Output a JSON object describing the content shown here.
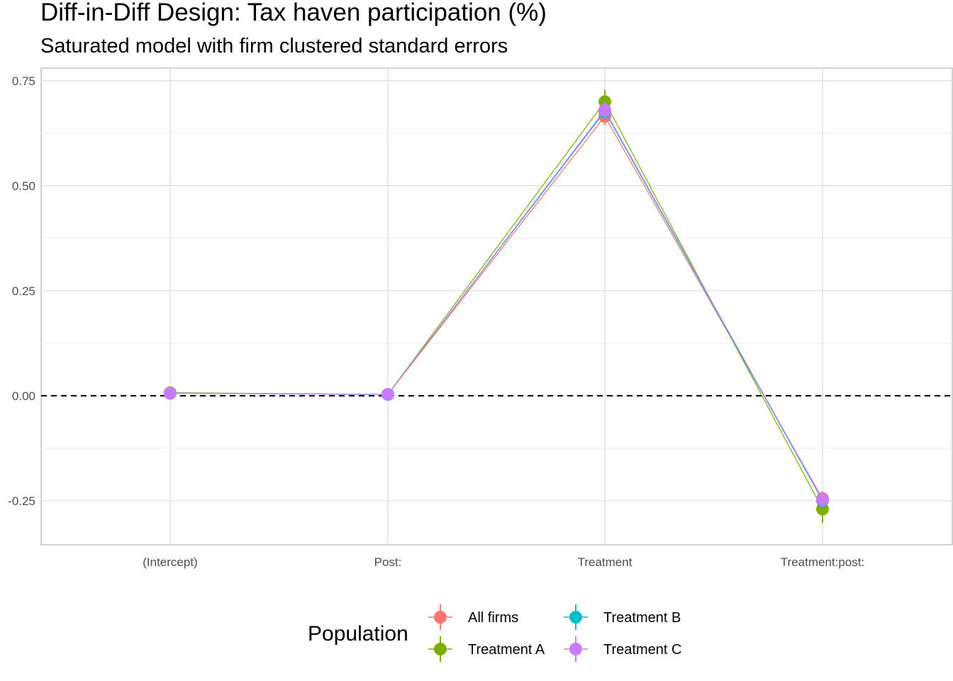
{
  "chart_data": {
    "type": "line",
    "title": "Diff-in-Diff Design: Tax haven participation (%)",
    "subtitle": "Saturated model with firm clustered standard errors",
    "xlabel": "",
    "ylabel": "",
    "categories": [
      "(Intercept)",
      "Post:",
      "Treatment",
      "Treatment:post:"
    ],
    "yticks": [
      "0.75",
      "0.50",
      "0.25",
      "0.00",
      "-0.25"
    ],
    "ytick_values": [
      0.75,
      0.5,
      0.25,
      0.0,
      -0.25
    ],
    "ylim": [
      -0.355,
      0.78
    ],
    "reference_line": 0,
    "grid": true,
    "legend": {
      "title": "Population",
      "placement": "bottom"
    },
    "series": [
      {
        "name": "All firms",
        "color": "#F8766D",
        "values": [
          0.006,
          0.003,
          0.665,
          -0.245
        ],
        "lower": [
          0.003,
          0.001,
          0.645,
          -0.262
        ],
        "upper": [
          0.009,
          0.005,
          0.685,
          -0.228
        ]
      },
      {
        "name": "Treatment A",
        "color": "#7CAE00",
        "values": [
          0.007,
          0.003,
          0.7,
          -0.27
        ],
        "lower": [
          0.002,
          0.0,
          0.672,
          -0.303
        ],
        "upper": [
          0.012,
          0.006,
          0.728,
          -0.237
        ]
      },
      {
        "name": "Treatment B",
        "color": "#00BFC4",
        "values": [
          0.006,
          0.003,
          0.677,
          -0.25
        ],
        "lower": [
          0.003,
          0.001,
          0.657,
          -0.267
        ],
        "upper": [
          0.009,
          0.005,
          0.697,
          -0.233
        ]
      },
      {
        "name": "Treatment C",
        "color": "#C77CFF",
        "values": [
          0.006,
          0.003,
          0.68,
          -0.248
        ],
        "lower": [
          0.003,
          0.001,
          0.66,
          -0.265
        ],
        "upper": [
          0.009,
          0.005,
          0.7,
          -0.231
        ]
      }
    ]
  }
}
